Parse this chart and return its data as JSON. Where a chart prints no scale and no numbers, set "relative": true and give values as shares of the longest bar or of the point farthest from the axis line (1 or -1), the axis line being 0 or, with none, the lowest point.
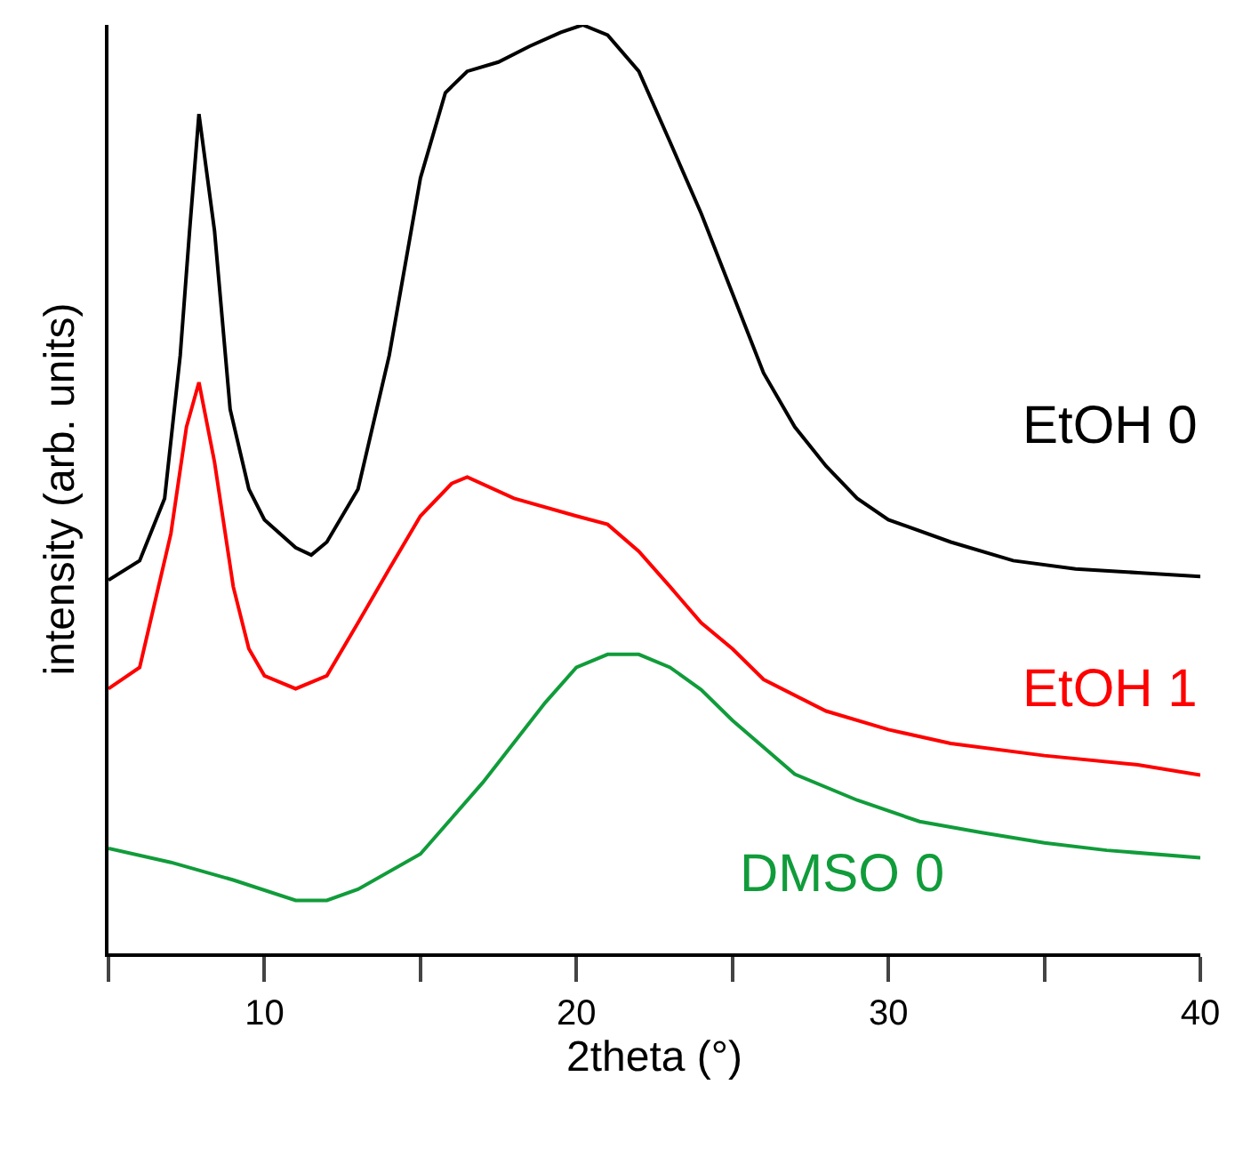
{
  "chart_data": {
    "type": "line",
    "relative": true,
    "xlabel": "2theta (°)",
    "ylabel": "intensity (arb. units)",
    "xlim": [
      5,
      40
    ],
    "xticks": [
      {
        "value": 5,
        "label": null
      },
      10,
      {
        "value": 15,
        "label": null
      },
      20,
      {
        "value": 25,
        "label": null
      },
      30,
      {
        "value": 35,
        "label": null
      },
      40
    ],
    "legend": false,
    "marker": "none",
    "line_style": "solid",
    "series": [
      {
        "name": "EtOH 0",
        "color": "#000000",
        "x": [
          5,
          6,
          6.8,
          7.3,
          7.6,
          7.9,
          8.4,
          8.9,
          9.5,
          10,
          11,
          11.5,
          12,
          13,
          14,
          15,
          15.8,
          16.5,
          17.5,
          18.5,
          19.5,
          20.2,
          21,
          22,
          23,
          24,
          25,
          26,
          27,
          28,
          29,
          30,
          32,
          34,
          36,
          38,
          40
        ],
        "values": [
          0.402,
          0.423,
          0.49,
          0.644,
          0.778,
          0.904,
          0.778,
          0.586,
          0.5,
          0.467,
          0.437,
          0.429,
          0.443,
          0.5,
          0.644,
          0.835,
          0.927,
          0.95,
          0.96,
          0.977,
          0.992,
          1,
          0.989,
          0.95,
          0.874,
          0.797,
          0.711,
          0.625,
          0.567,
          0.525,
          0.49,
          0.467,
          0.443,
          0.423,
          0.414,
          0.41,
          0.406
        ]
      },
      {
        "name": "EtOH 1",
        "color": "#ff0000",
        "x": [
          5,
          6,
          7,
          7.5,
          7.9,
          8.4,
          9,
          9.5,
          10,
          11,
          12,
          13,
          14,
          15,
          16,
          16.5,
          18,
          20,
          21,
          22,
          23,
          24,
          25,
          26,
          28,
          30,
          32,
          35,
          38,
          40
        ],
        "values": [
          0.285,
          0.308,
          0.452,
          0.567,
          0.615,
          0.529,
          0.395,
          0.328,
          0.299,
          0.285,
          0.299,
          0.356,
          0.414,
          0.471,
          0.506,
          0.513,
          0.49,
          0.471,
          0.462,
          0.433,
          0.395,
          0.356,
          0.328,
          0.295,
          0.261,
          0.241,
          0.226,
          0.213,
          0.203,
          0.192
        ]
      },
      {
        "name": "DMSO 0",
        "color": "#109c3a",
        "x": [
          5,
          7,
          9,
          11,
          12,
          13,
          15,
          17,
          19,
          20,
          21,
          22,
          23,
          24,
          25,
          27,
          29,
          31,
          33,
          35,
          37,
          40
        ],
        "values": [
          0.113,
          0.098,
          0.079,
          0.057,
          0.057,
          0.069,
          0.107,
          0.184,
          0.27,
          0.308,
          0.322,
          0.322,
          0.308,
          0.284,
          0.251,
          0.193,
          0.165,
          0.142,
          0.13,
          0.119,
          0.111,
          0.103
        ]
      }
    ]
  }
}
